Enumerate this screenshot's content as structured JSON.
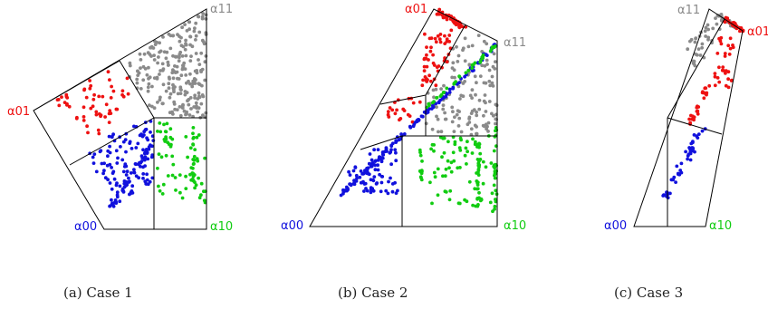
{
  "figure": {
    "colors": {
      "gray": "#8a8a8a",
      "red": "#ee1111",
      "blue": "#1111dd",
      "green": "#11cc11",
      "line": "#000000"
    },
    "panels": [
      {
        "id": "case1",
        "caption": "(a)  Case 1",
        "labels": {
          "a00": "α00",
          "a01": "α01",
          "a10": "α10",
          "a11": "α11"
        }
      },
      {
        "id": "case2",
        "caption": "(b)  Case 2",
        "labels": {
          "a00": "α00",
          "a01": "α01",
          "a10": "α10",
          "a11": "α11"
        }
      },
      {
        "id": "case3",
        "caption": "(c)  Case 3",
        "labels": {
          "a00": "α00",
          "a01": "α01",
          "a10": "α10",
          "a11": "α11"
        }
      }
    ]
  }
}
